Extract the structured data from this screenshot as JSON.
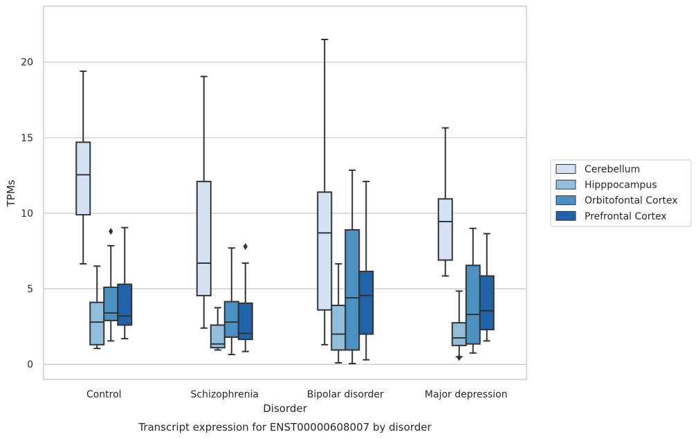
{
  "chart_data": {
    "type": "box",
    "xlabel": "Disorder",
    "ylabel": "TPMs",
    "caption": "Transcript expression for ENST00000608007 by disorder",
    "categories": [
      "Control",
      "Schizophrenia",
      "Bipolar disorder",
      "Major depression"
    ],
    "ylim": [
      -1,
      23.7
    ],
    "yticks": [
      0,
      5,
      10,
      15,
      20
    ],
    "grid": true,
    "legend_position": "right",
    "colors": {
      "Cerebellum": "#d3e2f3",
      "Hipppocampus": "#91bfdb",
      "Orbitofontal Cortex": "#4b91c2",
      "Prefrontal Cortex": "#2163a8",
      "line": "#333333",
      "grid": "#cccccc"
    },
    "series": [
      {
        "name": "Cerebellum",
        "boxes": [
          {
            "whisker_low": 6.65,
            "q1": 9.9,
            "median": 12.55,
            "q3": 14.7,
            "whisker_high": 19.4,
            "outliers": []
          },
          {
            "whisker_low": 2.4,
            "q1": 4.55,
            "median": 6.7,
            "q3": 12.1,
            "whisker_high": 19.05,
            "outliers": []
          },
          {
            "whisker_low": 1.3,
            "q1": 3.6,
            "median": 8.7,
            "q3": 11.4,
            "whisker_high": 21.5,
            "outliers": []
          },
          {
            "whisker_low": 5.85,
            "q1": 6.9,
            "median": 9.45,
            "q3": 10.95,
            "whisker_high": 15.65,
            "outliers": []
          }
        ]
      },
      {
        "name": "Hipppocampus",
        "boxes": [
          {
            "whisker_low": 1.05,
            "q1": 1.3,
            "median": 2.8,
            "q3": 4.1,
            "whisker_high": 6.5,
            "outliers": []
          },
          {
            "whisker_low": 0.95,
            "q1": 1.1,
            "median": 1.35,
            "q3": 2.6,
            "whisker_high": 3.75,
            "outliers": []
          },
          {
            "whisker_low": 0.1,
            "q1": 0.95,
            "median": 2.0,
            "q3": 3.9,
            "whisker_high": 6.65,
            "outliers": []
          },
          {
            "whisker_low": 0.5,
            "q1": 1.25,
            "median": 1.75,
            "q3": 2.75,
            "whisker_high": 4.85,
            "outliers": [
              0.45
            ]
          }
        ]
      },
      {
        "name": "Orbitofontal Cortex",
        "boxes": [
          {
            "whisker_low": 1.55,
            "q1": 2.9,
            "median": 3.4,
            "q3": 5.1,
            "whisker_high": 7.85,
            "outliers": [
              8.8
            ]
          },
          {
            "whisker_low": 0.65,
            "q1": 1.8,
            "median": 2.8,
            "q3": 4.15,
            "whisker_high": 7.7,
            "outliers": []
          },
          {
            "whisker_low": 0.05,
            "q1": 0.95,
            "median": 4.4,
            "q3": 8.9,
            "whisker_high": 12.85,
            "outliers": []
          },
          {
            "whisker_low": 0.75,
            "q1": 1.35,
            "median": 3.3,
            "q3": 6.55,
            "whisker_high": 9.0,
            "outliers": []
          }
        ]
      },
      {
        "name": "Prefrontal Cortex",
        "boxes": [
          {
            "whisker_low": 1.7,
            "q1": 2.6,
            "median": 3.2,
            "q3": 5.3,
            "whisker_high": 9.05,
            "outliers": []
          },
          {
            "whisker_low": 0.85,
            "q1": 1.65,
            "median": 2.05,
            "q3": 4.05,
            "whisker_high": 6.7,
            "outliers": [
              7.8
            ]
          },
          {
            "whisker_low": 0.3,
            "q1": 2.0,
            "median": 4.55,
            "q3": 6.15,
            "whisker_high": 12.1,
            "outliers": []
          },
          {
            "whisker_low": 1.55,
            "q1": 2.3,
            "median": 3.55,
            "q3": 5.85,
            "whisker_high": 8.65,
            "outliers": []
          }
        ]
      }
    ]
  }
}
